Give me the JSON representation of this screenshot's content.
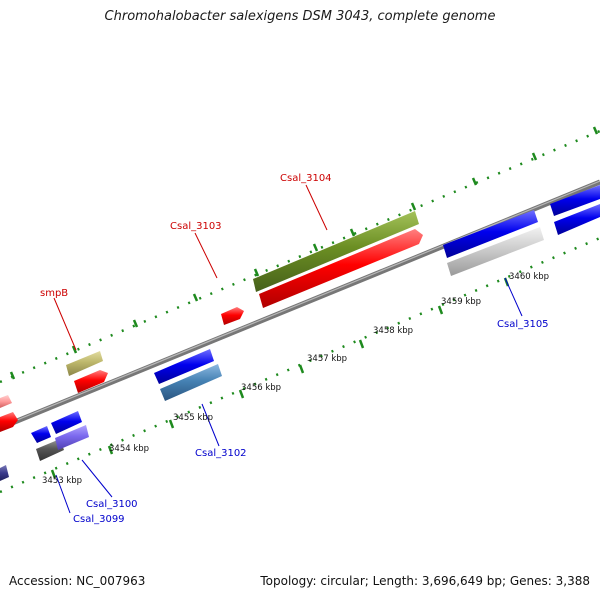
{
  "title": "Chromohalobacter salexigens DSM 3043, complete genome",
  "footer": {
    "accession": "Accession: NC_007963",
    "topology": "Topology: circular; Length: 3,696,649 bp; Genes: 3,388"
  },
  "ticks": [
    "3453 kbp",
    "3454 kbp",
    "3455 kbp",
    "3456 kbp",
    "3457 kbp",
    "3458 kbp",
    "3459 kbp",
    "3460 kbp"
  ],
  "gene_labels": {
    "forward": [
      "smpB",
      "Csal_3103",
      "Csal_3104"
    ],
    "reverse": [
      "Csal_3099",
      "Csal_3100",
      "Csal_3102",
      "Csal_3105"
    ]
  },
  "colors": {
    "forward_label": "#cc0000",
    "reverse_label": "#0000cc",
    "dotted_track": "#1e8a1e",
    "backbone": "#808080",
    "red_gene": "#ff0000",
    "blue_gene": "#0000ee",
    "olive_gene": "#6b8e23",
    "khaki_gene": "#bdb76b",
    "steel_gene": "#4682b4",
    "grey_gene": "#c8c8c8",
    "slate_gene": "#7b68ee",
    "dark_gene": "#555555"
  }
}
